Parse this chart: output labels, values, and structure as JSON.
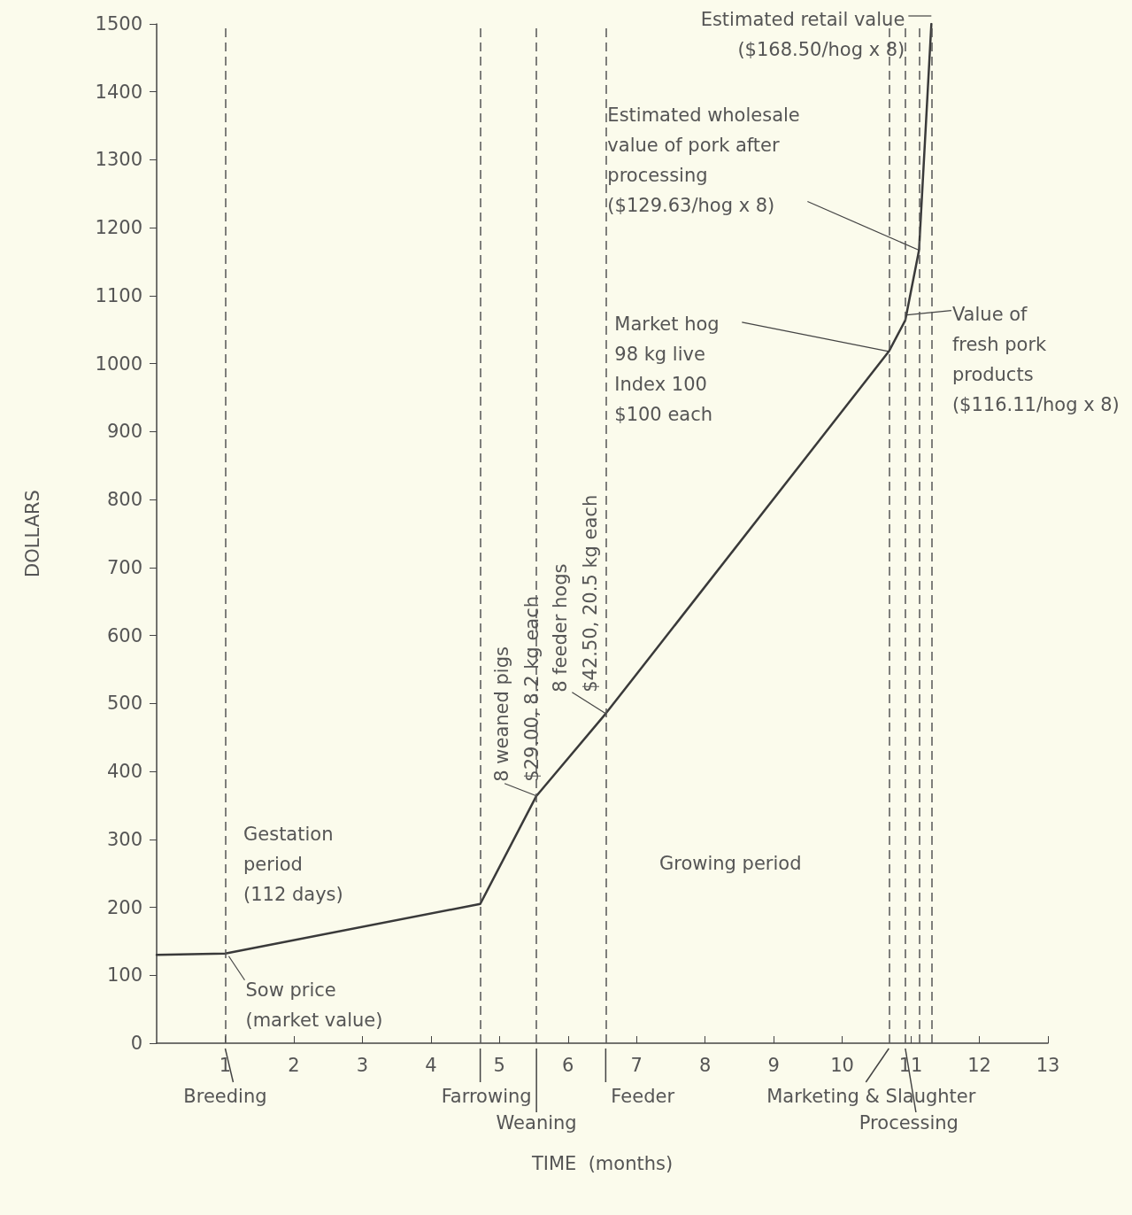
{
  "chart_data": {
    "type": "line",
    "xlabel": "TIME  (months)",
    "ylabel": "DOLLARS",
    "x": [
      0,
      1,
      4.72,
      5.54,
      6.55,
      10.68,
      10.92,
      11.12,
      11.3
    ],
    "series": [
      {
        "color": "#3a3a3a",
        "values": [
          130,
          132,
          205,
          364,
          485,
          1018,
          1064,
          1167,
          1500
        ]
      }
    ],
    "xlim": [
      0,
      13
    ],
    "xticks": [
      1,
      2,
      3,
      4,
      5,
      6,
      7,
      8,
      9,
      10,
      11,
      12,
      13
    ],
    "ylim": [
      0,
      1500
    ],
    "yticks": [
      0,
      100,
      200,
      300,
      400,
      500,
      600,
      700,
      800,
      900,
      1000,
      1100,
      1200,
      1300,
      1400,
      1500
    ],
    "grid": false,
    "marker": "none",
    "line_style": "solid",
    "ref_lines": [
      {
        "axis": "x",
        "value": 1,
        "label": "Breeding",
        "line_style": "dashed",
        "color": "#555555"
      },
      {
        "axis": "x",
        "value": 4.72,
        "label": "Farrowing",
        "line_style": "dashed",
        "color": "#555555"
      },
      {
        "axis": "x",
        "value": 5.54,
        "label": "Weaning",
        "line_style": "dashed",
        "color": "#555555"
      },
      {
        "axis": "x",
        "value": 6.55,
        "label": "Feeder",
        "line_style": "dashed",
        "color": "#555555"
      },
      {
        "axis": "x",
        "value": 10.68,
        "label": "Marketing & Slaughter",
        "line_style": "dashed",
        "color": "#555555"
      },
      {
        "axis": "x",
        "value": 10.92,
        "label": "Processing",
        "line_style": "dashed",
        "color": "#555555"
      },
      {
        "axis": "x",
        "value": 11.12,
        "line_style": "dashed",
        "color": "#555555"
      },
      {
        "axis": "x",
        "value": 11.3,
        "line_style": "dashed",
        "color": "#555555"
      }
    ],
    "annotations": [
      {
        "text": "Sow price\n(market value)",
        "x": 1,
        "y": 132
      },
      {
        "text": "8 weaned pigs\n$29.00, 8.2 kg each",
        "x": 5.54,
        "y": 364
      },
      {
        "text": "8 feeder hogs\n$42.50, 20.5 kg each",
        "x": 6.55,
        "y": 485
      },
      {
        "text": "Market hog\n98 kg live\nIndex 100\n$100 each",
        "x": 10.68,
        "y": 1018
      },
      {
        "text": "Value of\nfresh pork\nproducts\n($116.11/hog x 8)",
        "x": 10.92,
        "y": 1064
      },
      {
        "text": "Estimated wholesale\nvalue of pork after\nprocessing\n($129.63/hog x 8)",
        "x": 11.12,
        "y": 1167
      },
      {
        "text": "Estimated retail value\n($168.50/hog x 8)",
        "x": 11.3,
        "y": 1500
      },
      "Gestation\nperiod\n(112 days)",
      "Growing period"
    ]
  }
}
